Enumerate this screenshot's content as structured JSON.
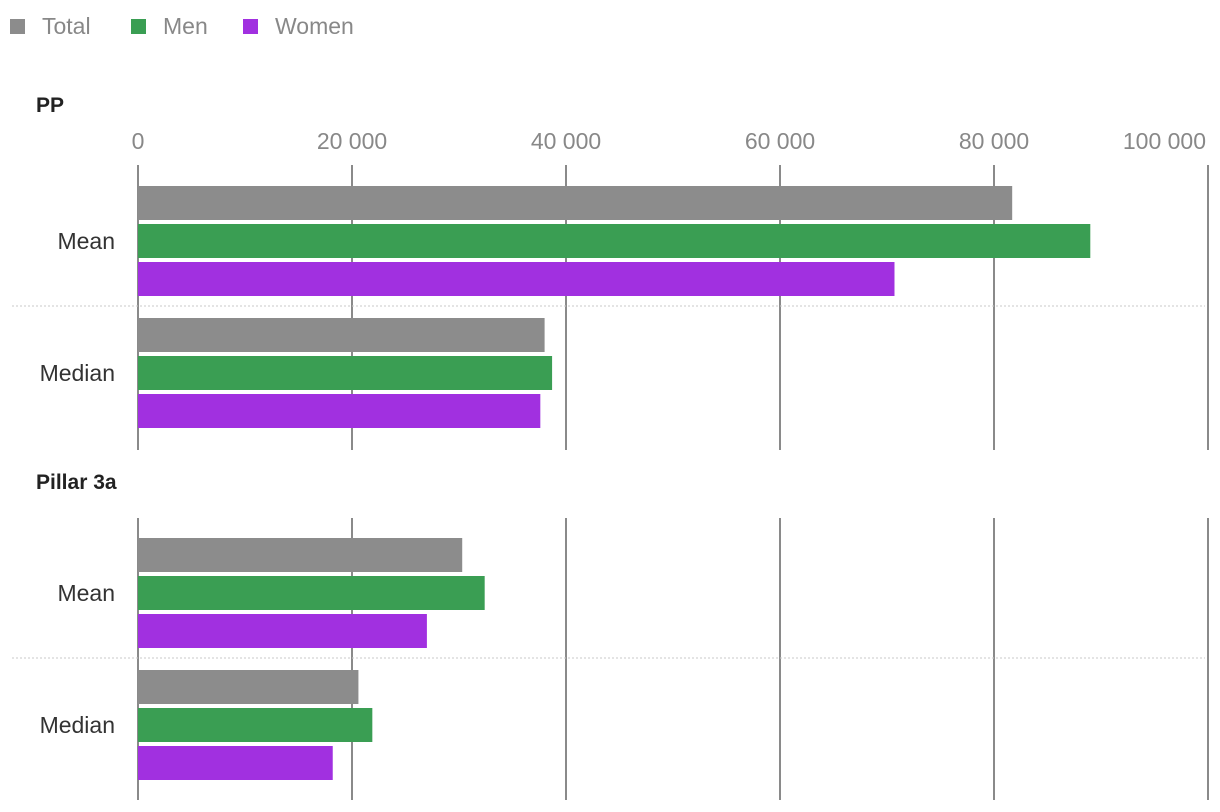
{
  "chart_data": {
    "type": "bar",
    "orientation": "horizontal",
    "xlim": [
      0,
      100000
    ],
    "xticks": [
      0,
      20000,
      40000,
      60000,
      80000,
      100000
    ],
    "xtick_labels": [
      "0",
      "20 000",
      "40 000",
      "60 000",
      "80 000",
      "100 000"
    ],
    "legend_placement": "top-left",
    "legend": [
      {
        "name": "Total",
        "color": "#8c8c8c"
      },
      {
        "name": "Men",
        "color": "#3a9e53"
      },
      {
        "name": "Women",
        "color": "#a130e0"
      }
    ],
    "panels": [
      {
        "title": "PP",
        "categories": [
          "Mean",
          "Median"
        ],
        "series": [
          {
            "name": "Total",
            "values": [
              81700,
              38000
            ]
          },
          {
            "name": "Men",
            "values": [
              89000,
              38700
            ]
          },
          {
            "name": "Women",
            "values": [
              70700,
              37600
            ]
          }
        ]
      },
      {
        "title": "Pillar 3a",
        "categories": [
          "Mean",
          "Median"
        ],
        "series": [
          {
            "name": "Total",
            "values": [
              30300,
              20600
            ]
          },
          {
            "name": "Men",
            "values": [
              32400,
              21900
            ]
          },
          {
            "name": "Women",
            "values": [
              27000,
              18200
            ]
          }
        ]
      }
    ]
  }
}
